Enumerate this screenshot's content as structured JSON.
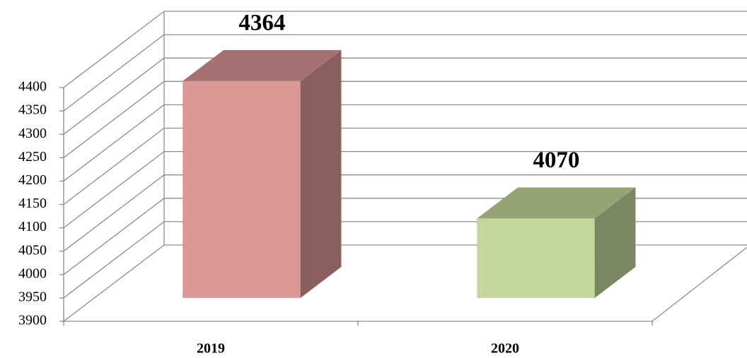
{
  "chart_data": {
    "type": "bar3d",
    "categories": [
      "2019",
      "2020"
    ],
    "values": [
      4364,
      4070
    ],
    "colors": [
      "#db9695",
      "#c4d79b"
    ],
    "ylim": [
      3900,
      4400
    ],
    "yticks": [
      3900,
      3950,
      4000,
      4050,
      4100,
      4150,
      4200,
      4250,
      4300,
      4350,
      4400
    ],
    "grid": true
  }
}
